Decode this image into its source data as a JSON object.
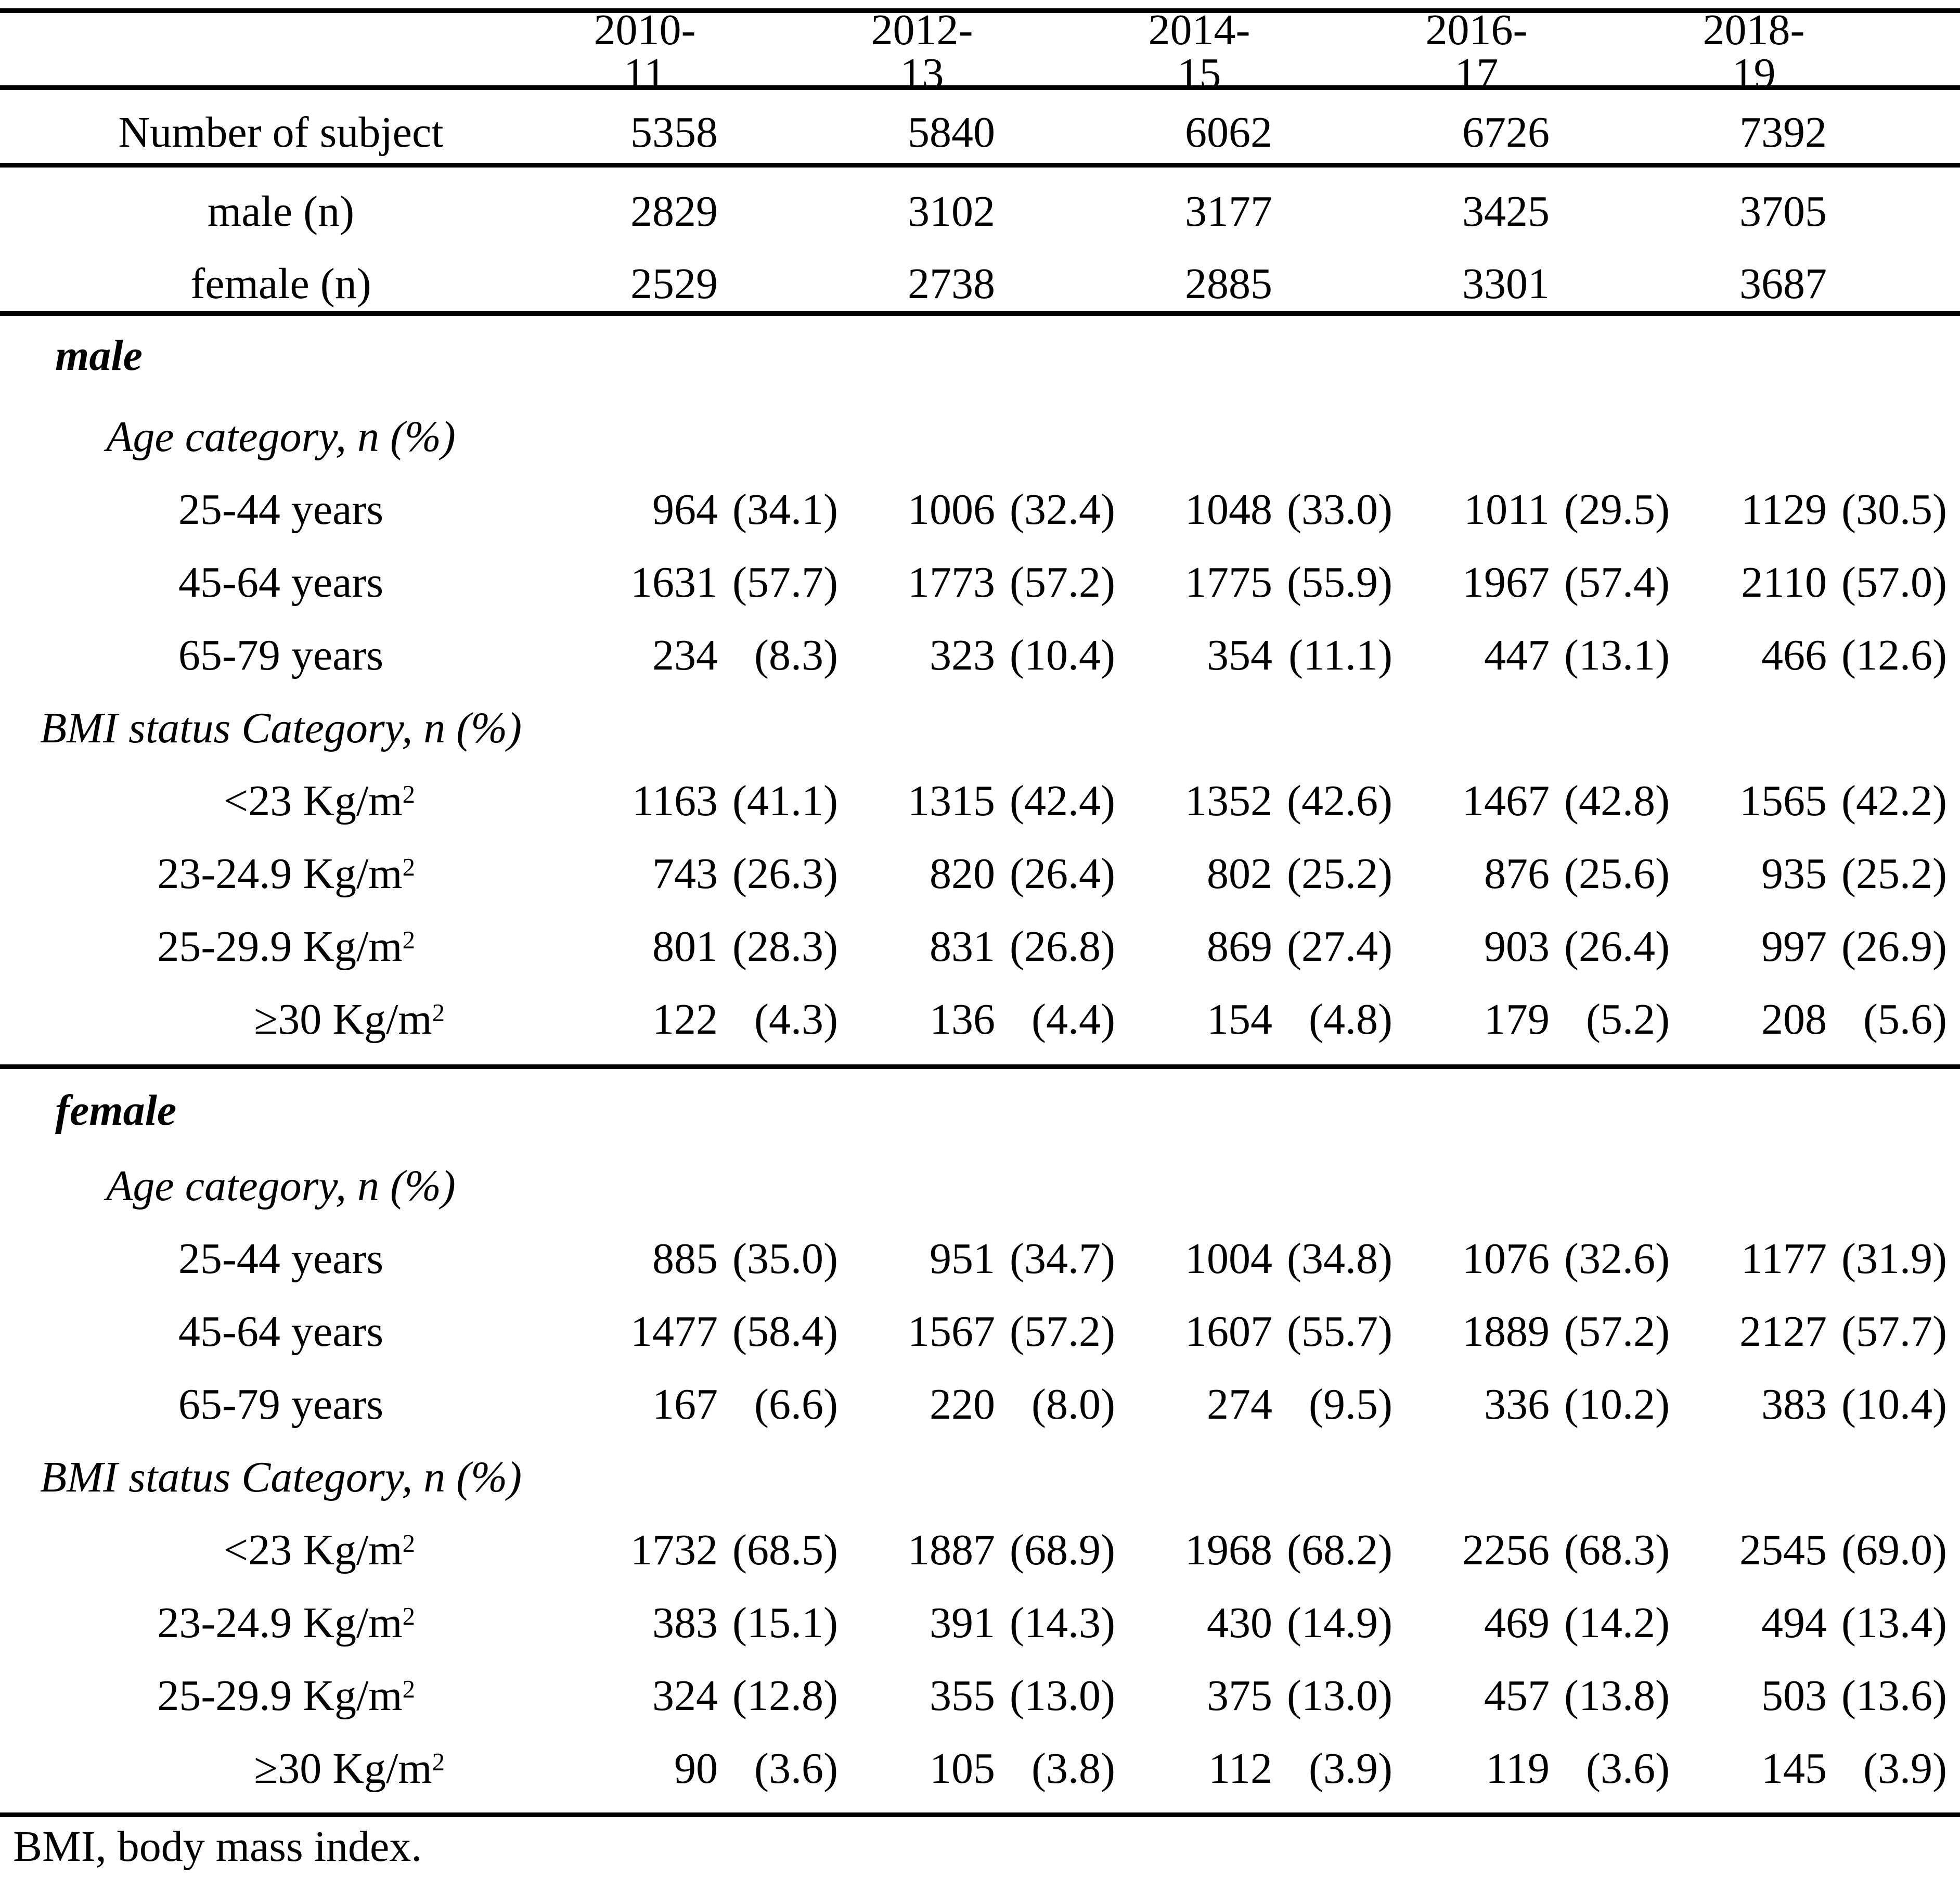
{
  "table": {
    "columns": [
      "2010-11",
      "2012-13",
      "2014-15",
      "2016-17",
      "2018-19"
    ],
    "summary_rows": [
      {
        "label": "Number of subject",
        "values": [
          "5358",
          "5840",
          "6062",
          "6726",
          "7392"
        ]
      },
      {
        "label": "male (n)",
        "values": [
          "2829",
          "3102",
          "3177",
          "3425",
          "3705"
        ]
      },
      {
        "label": "female (n)",
        "values": [
          "2529",
          "2738",
          "2885",
          "3301",
          "3687"
        ]
      }
    ],
    "sections": [
      {
        "title": "male",
        "groups": [
          {
            "header": "Age category, n (%)",
            "rows": [
              {
                "label": "25-44 years",
                "sup": "",
                "align": "center",
                "cells": [
                  [
                    "964",
                    "(34.1)"
                  ],
                  [
                    "1006",
                    "(32.4)"
                  ],
                  [
                    "1048",
                    "(33.0)"
                  ],
                  [
                    "1011",
                    "(29.5)"
                  ],
                  [
                    "1129",
                    "(30.5)"
                  ]
                ]
              },
              {
                "label": "45-64 years",
                "sup": "",
                "align": "center",
                "cells": [
                  [
                    "1631",
                    "(57.7)"
                  ],
                  [
                    "1773",
                    "(57.2)"
                  ],
                  [
                    "1775",
                    "(55.9)"
                  ],
                  [
                    "1967",
                    "(57.4)"
                  ],
                  [
                    "2110",
                    "(57.0)"
                  ]
                ]
              },
              {
                "label": "65-79 years",
                "sup": "",
                "align": "center",
                "cells": [
                  [
                    "234",
                    "(8.3)"
                  ],
                  [
                    "323",
                    "(10.4)"
                  ],
                  [
                    "354",
                    "(11.1)"
                  ],
                  [
                    "447",
                    "(13.1)"
                  ],
                  [
                    "466",
                    "(12.6)"
                  ]
                ]
              }
            ]
          },
          {
            "header": "BMI status Category, n (%)",
            "rows": [
              {
                "label": "<23 Kg/m",
                "sup": "2",
                "align": "right",
                "cells": [
                  [
                    "1163",
                    "(41.1)"
                  ],
                  [
                    "1315",
                    "(42.4)"
                  ],
                  [
                    "1352",
                    "(42.6)"
                  ],
                  [
                    "1467",
                    "(42.8)"
                  ],
                  [
                    "1565",
                    "(42.2)"
                  ]
                ]
              },
              {
                "label": "23-24.9 Kg/m",
                "sup": "2",
                "align": "right",
                "cells": [
                  [
                    "743",
                    "(26.3)"
                  ],
                  [
                    "820",
                    "(26.4)"
                  ],
                  [
                    "802",
                    "(25.2)"
                  ],
                  [
                    "876",
                    "(25.6)"
                  ],
                  [
                    "935",
                    "(25.2)"
                  ]
                ]
              },
              {
                "label": "25-29.9 Kg/m",
                "sup": "2",
                "align": "right",
                "cells": [
                  [
                    "801",
                    "(28.3)"
                  ],
                  [
                    "831",
                    "(26.8)"
                  ],
                  [
                    "869",
                    "(27.4)"
                  ],
                  [
                    "903",
                    "(26.4)"
                  ],
                  [
                    "997",
                    "(26.9)"
                  ]
                ]
              },
              {
                "label": "≥30 Kg/m",
                "sup": "2",
                "align": "right-wide",
                "cells": [
                  [
                    "122",
                    "(4.3)"
                  ],
                  [
                    "136",
                    "(4.4)"
                  ],
                  [
                    "154",
                    "(4.8)"
                  ],
                  [
                    "179",
                    "(5.2)"
                  ],
                  [
                    "208",
                    "(5.6)"
                  ]
                ]
              }
            ]
          }
        ]
      },
      {
        "title": "female",
        "groups": [
          {
            "header": "Age category, n (%)",
            "rows": [
              {
                "label": "25-44 years",
                "sup": "",
                "align": "center",
                "cells": [
                  [
                    "885",
                    "(35.0)"
                  ],
                  [
                    "951",
                    "(34.7)"
                  ],
                  [
                    "1004",
                    "(34.8)"
                  ],
                  [
                    "1076",
                    "(32.6)"
                  ],
                  [
                    "1177",
                    "(31.9)"
                  ]
                ]
              },
              {
                "label": "45-64 years",
                "sup": "",
                "align": "center",
                "cells": [
                  [
                    "1477",
                    "(58.4)"
                  ],
                  [
                    "1567",
                    "(57.2)"
                  ],
                  [
                    "1607",
                    "(55.7)"
                  ],
                  [
                    "1889",
                    "(57.2)"
                  ],
                  [
                    "2127",
                    "(57.7)"
                  ]
                ]
              },
              {
                "label": "65-79 years",
                "sup": "",
                "align": "center",
                "cells": [
                  [
                    "167",
                    "(6.6)"
                  ],
                  [
                    "220",
                    "(8.0)"
                  ],
                  [
                    "274",
                    "(9.5)"
                  ],
                  [
                    "336",
                    "(10.2)"
                  ],
                  [
                    "383",
                    "(10.4)"
                  ]
                ]
              }
            ]
          },
          {
            "header": "BMI status Category, n (%)",
            "rows": [
              {
                "label": "<23 Kg/m",
                "sup": "2",
                "align": "right",
                "cells": [
                  [
                    "1732",
                    "(68.5)"
                  ],
                  [
                    "1887",
                    "(68.9)"
                  ],
                  [
                    "1968",
                    "(68.2)"
                  ],
                  [
                    "2256",
                    "(68.3)"
                  ],
                  [
                    "2545",
                    "(69.0)"
                  ]
                ]
              },
              {
                "label": "23-24.9 Kg/m",
                "sup": "2",
                "align": "right",
                "cells": [
                  [
                    "383",
                    "(15.1)"
                  ],
                  [
                    "391",
                    "(14.3)"
                  ],
                  [
                    "430",
                    "(14.9)"
                  ],
                  [
                    "469",
                    "(14.2)"
                  ],
                  [
                    "494",
                    "(13.4)"
                  ]
                ]
              },
              {
                "label": "25-29.9 Kg/m",
                "sup": "2",
                "align": "right",
                "cells": [
                  [
                    "324",
                    "(12.8)"
                  ],
                  [
                    "355",
                    "(13.0)"
                  ],
                  [
                    "375",
                    "(13.0)"
                  ],
                  [
                    "457",
                    "(13.8)"
                  ],
                  [
                    "503",
                    "(13.6)"
                  ]
                ]
              },
              {
                "label": "≥30 Kg/m",
                "sup": "2",
                "align": "right-wide",
                "cells": [
                  [
                    "90",
                    "(3.6)"
                  ],
                  [
                    "105",
                    "(3.8)"
                  ],
                  [
                    "112",
                    "(3.9)"
                  ],
                  [
                    "119",
                    "(3.6)"
                  ],
                  [
                    "145",
                    "(3.9)"
                  ]
                ]
              }
            ]
          }
        ]
      }
    ],
    "footnote": "BMI, body mass index."
  }
}
